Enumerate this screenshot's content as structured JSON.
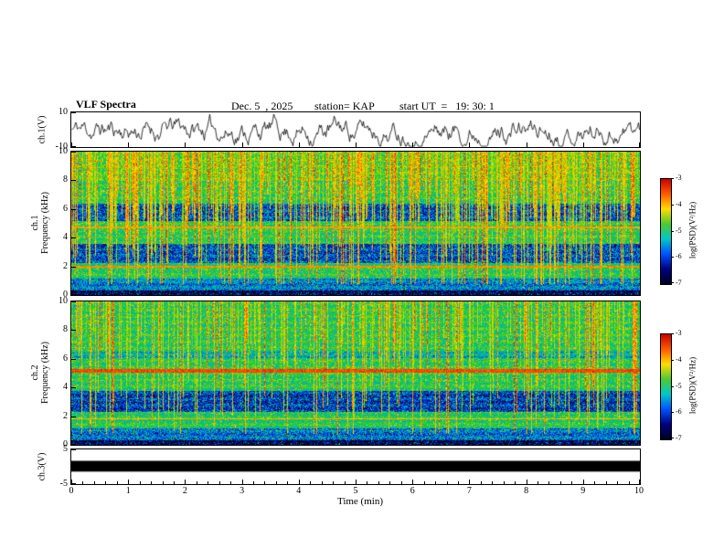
{
  "header": {
    "title": "VLF Spectra",
    "date": "Dec. 5  , 2025",
    "station_label": "station= KAP",
    "start_ut_label": "start UT  =   19: 30: 1"
  },
  "xaxis": {
    "label": "Time (min)",
    "min": 0,
    "max": 10,
    "ticks": [
      0,
      1,
      2,
      3,
      4,
      5,
      6,
      7,
      8,
      9,
      10
    ]
  },
  "colorbar": {
    "label": "log(PSD)(V²/Hz)",
    "ticks": [
      -3,
      -4,
      -5,
      -6,
      -7
    ],
    "colors_top_to_bottom": [
      "#c80000",
      "#ff5a00",
      "#ffdc00",
      "#50c832",
      "#00c8c8",
      "#0050ff",
      "#000080",
      "#000020"
    ]
  },
  "chart_data": [
    {
      "type": "line",
      "panel": "ch1_waveform",
      "ylabel": "ch.1(V)",
      "ylim": [
        -10,
        10
      ],
      "yticks": [
        10,
        -10
      ],
      "seed": 11,
      "line_color": "#000000",
      "description": "Broadband VLF channel 1 amplitude: dense noisy waveform fluctuating within about ±9 V across the full 10 minute record"
    },
    {
      "type": "heatmap",
      "panel": "ch1_spectrogram",
      "ylabel_line1": "ch.1",
      "ylabel_line2": "Frequency (kHz)",
      "ylim": [
        0,
        10
      ],
      "yticks": [
        0,
        2,
        4,
        6,
        8,
        10
      ],
      "zlim": [
        -7,
        -3
      ],
      "seed": 23,
      "streak_density": 0.55,
      "full_streak_density": 0.08,
      "bands": [
        {
          "f0": 0.0,
          "f1": 0.35,
          "dv": -0.5
        },
        {
          "f0": 0.35,
          "f1": 1.15,
          "dv": -0.2
        },
        {
          "f0": 2.25,
          "f1": 3.6,
          "dv": -0.27
        },
        {
          "f0": 5.2,
          "f1": 6.4,
          "dv": -0.27
        },
        {
          "f0": 8.0,
          "f1": 10.0,
          "dv": 0.05
        }
      ],
      "lines": [
        {
          "f": 2.0,
          "w": 0.06,
          "v": 0.9
        },
        {
          "f": 4.75,
          "w": 0.07,
          "v": 0.88
        }
      ],
      "description": "Spectrogram 0-10 kHz, mostly green background with dense red/yellow vertical sferic streaks, dark blue horizontal bands near 2.3-3.6 and 5.2-6.4 kHz, dark band below 0.4 kHz"
    },
    {
      "type": "heatmap",
      "panel": "ch2_spectrogram",
      "ylabel_line1": "ch.2",
      "ylabel_line2": "Frequency (kHz)",
      "ylim": [
        0,
        10
      ],
      "yticks": [
        0,
        2,
        4,
        6,
        8,
        10
      ],
      "zlim": [
        -7,
        -3
      ],
      "seed": 57,
      "streak_density": 0.32,
      "full_streak_density": 0.05,
      "bands": [
        {
          "f0": 0.0,
          "f1": 0.35,
          "dv": -0.5
        },
        {
          "f0": 0.35,
          "f1": 1.2,
          "dv": -0.22
        },
        {
          "f0": 2.3,
          "f1": 3.8,
          "dv": -0.3
        },
        {
          "f0": 6.1,
          "f1": 6.5,
          "dv": -0.12
        }
      ],
      "lines": [
        {
          "f": 5.2,
          "w": 0.12,
          "v": 0.97
        },
        {
          "f": 1.85,
          "w": 0.05,
          "v": 0.85
        }
      ],
      "description": "Spectrogram 0-10 kHz, green background with sparser vertical streaks, strong continuous red line near 5.2 kHz, dark blue band 2.3-3.8 kHz, dark band below 0.4 kHz"
    },
    {
      "type": "line",
      "panel": "ch3_waveform",
      "ylabel": "ch.3(V)",
      "ylim": [
        -5,
        5
      ],
      "yticks": [
        5,
        -5
      ],
      "seed": 5,
      "bar": [
        -1.4,
        1.7
      ],
      "description": "Channel 3 saturated: solid black band spanning the full record between about -1.4 and +1.7 V"
    }
  ]
}
